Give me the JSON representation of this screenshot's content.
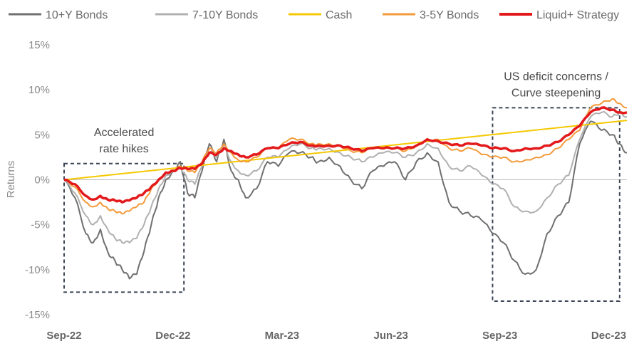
{
  "chart_data": {
    "type": "line",
    "ylabel": "Returns",
    "ylim": [
      -15,
      15
    ],
    "yticks": [
      15,
      10,
      5,
      0,
      -5,
      -10,
      -15
    ],
    "ytick_labels": [
      "15%",
      "10%",
      "5%",
      "0%",
      "-5%",
      "-10%",
      "-15%"
    ],
    "xlim": [
      0,
      15.5
    ],
    "xticks": [
      0,
      3,
      6,
      9,
      12,
      15
    ],
    "xtick_labels": [
      "Sep-22",
      "Dec-22",
      "Mar-23",
      "Jun-23",
      "Sep-23",
      "Dec-23"
    ],
    "legend_position": "top",
    "series": [
      {
        "name": "10+Y Bonds",
        "color": "#6f6f6f",
        "x": [
          0,
          0.3,
          0.6,
          0.8,
          1.0,
          1.2,
          1.4,
          1.6,
          1.8,
          2.0,
          2.2,
          2.4,
          2.6,
          2.8,
          3.0,
          3.2,
          3.4,
          3.6,
          3.8,
          4.0,
          4.2,
          4.4,
          4.6,
          4.8,
          5.0,
          5.3,
          5.6,
          5.9,
          6.2,
          6.5,
          6.8,
          7.0,
          7.3,
          7.6,
          7.9,
          8.2,
          8.5,
          8.8,
          9.1,
          9.4,
          9.7,
          10.0,
          10.3,
          10.6,
          10.9,
          11.2,
          11.5,
          11.8,
          12.1,
          12.4,
          12.7,
          13.0,
          13.3,
          13.6,
          13.9,
          14.2,
          14.5,
          14.8,
          15.1,
          15.3,
          15.5
        ],
        "values": [
          0,
          -2,
          -6,
          -7,
          -5.5,
          -8,
          -9,
          -10,
          -11,
          -10.5,
          -8,
          -5,
          -2,
          0,
          1,
          2,
          -1.5,
          -2,
          1,
          4,
          2,
          4.5,
          1,
          0,
          -2,
          -1,
          2,
          1.5,
          3,
          3,
          2.5,
          2,
          2.5,
          1.5,
          0,
          -1,
          1,
          1.5,
          2,
          0,
          2,
          3,
          2,
          -2.5,
          -3.5,
          -4,
          -4.5,
          -6,
          -7,
          -9,
          -10.5,
          -10,
          -6,
          -4,
          -2.5,
          4,
          6.5,
          5.5,
          5,
          4,
          3
        ]
      },
      {
        "name": "7-10Y Bonds",
        "color": "#b0b0b0",
        "x": [
          0,
          0.3,
          0.6,
          0.8,
          1.0,
          1.2,
          1.4,
          1.6,
          1.8,
          2.0,
          2.2,
          2.4,
          2.6,
          2.8,
          3.0,
          3.2,
          3.4,
          3.6,
          3.8,
          4.0,
          4.2,
          4.4,
          4.6,
          4.8,
          5.0,
          5.3,
          5.6,
          5.9,
          6.2,
          6.5,
          6.8,
          7.0,
          7.3,
          7.6,
          7.9,
          8.2,
          8.5,
          8.8,
          9.1,
          9.4,
          9.7,
          10.0,
          10.3,
          10.6,
          10.9,
          11.2,
          11.5,
          11.8,
          12.1,
          12.4,
          12.7,
          13.0,
          13.3,
          13.6,
          13.9,
          14.2,
          14.5,
          14.8,
          15.1,
          15.3,
          15.5
        ],
        "values": [
          0,
          -1.5,
          -4,
          -5,
          -4,
          -5.5,
          -6.5,
          -7,
          -7,
          -6.5,
          -5,
          -3,
          -1,
          0.5,
          1,
          1.5,
          0,
          -0.5,
          1.5,
          3.5,
          2.5,
          4,
          2,
          1,
          0.5,
          1,
          2.5,
          2.5,
          3.5,
          4,
          3.5,
          3.5,
          3.5,
          3,
          2.5,
          2,
          2.5,
          3,
          3,
          2.5,
          3,
          4,
          3.5,
          1.5,
          1,
          1.5,
          0.5,
          -0.5,
          -1,
          -3,
          -3.5,
          -3.5,
          -2,
          -0.5,
          0.5,
          4.5,
          7,
          7.5,
          7,
          7.5,
          7
        ]
      },
      {
        "name": "Cash",
        "color": "#f5c800",
        "x": [
          0,
          15.5
        ],
        "values": [
          0,
          6.6
        ]
      },
      {
        "name": "3-5Y Bonds",
        "color": "#f39a3a",
        "x": [
          0,
          0.3,
          0.6,
          0.8,
          1.0,
          1.2,
          1.4,
          1.6,
          1.8,
          2.0,
          2.2,
          2.4,
          2.6,
          2.8,
          3.0,
          3.2,
          3.4,
          3.6,
          3.8,
          4.0,
          4.2,
          4.4,
          4.6,
          4.8,
          5.0,
          5.3,
          5.6,
          5.9,
          6.2,
          6.5,
          6.8,
          7.0,
          7.3,
          7.6,
          7.9,
          8.2,
          8.5,
          8.8,
          9.1,
          9.4,
          9.7,
          10.0,
          10.3,
          10.6,
          10.9,
          11.2,
          11.5,
          11.8,
          12.1,
          12.4,
          12.7,
          13.0,
          13.3,
          13.6,
          13.9,
          14.2,
          14.5,
          14.8,
          15.1,
          15.3,
          15.5
        ],
        "values": [
          0,
          -0.8,
          -2.5,
          -3,
          -2.5,
          -3.2,
          -3.5,
          -3.8,
          -3.5,
          -3,
          -2.5,
          -1,
          0,
          0.8,
          1,
          1.5,
          1,
          0.8,
          2,
          3.5,
          3,
          4,
          3,
          2.2,
          2,
          2.5,
          3.5,
          3.5,
          4.5,
          4.5,
          4,
          4,
          4,
          3.8,
          3.2,
          3,
          3.5,
          3.5,
          3.5,
          3.2,
          3.8,
          4.5,
          4.5,
          3.5,
          3.2,
          3.5,
          2.8,
          2.5,
          2.5,
          2,
          2.2,
          2.5,
          2.8,
          3.5,
          4.5,
          5.5,
          8,
          8.5,
          9,
          8.5,
          8
        ]
      },
      {
        "name": "Liquid+ Strategy",
        "color": "#e3191b",
        "x": [
          0,
          0.3,
          0.6,
          0.8,
          1.0,
          1.2,
          1.4,
          1.6,
          1.8,
          2.0,
          2.2,
          2.4,
          2.6,
          2.8,
          3.0,
          3.2,
          3.4,
          3.6,
          3.8,
          4.0,
          4.2,
          4.4,
          4.6,
          4.8,
          5.0,
          5.3,
          5.6,
          5.9,
          6.2,
          6.5,
          6.8,
          7.0,
          7.3,
          7.6,
          7.9,
          8.2,
          8.5,
          8.8,
          9.1,
          9.4,
          9.7,
          10.0,
          10.3,
          10.6,
          10.9,
          11.2,
          11.5,
          11.8,
          12.1,
          12.4,
          12.7,
          13.0,
          13.3,
          13.6,
          13.9,
          14.2,
          14.5,
          14.8,
          15.1,
          15.3,
          15.5
        ],
        "values": [
          0,
          -0.5,
          -1.8,
          -2.2,
          -1.8,
          -2.2,
          -2.3,
          -2.5,
          -2.3,
          -2,
          -1.5,
          -0.8,
          0,
          0.8,
          1,
          1.3,
          1.2,
          1.2,
          1.8,
          3,
          2.8,
          3.5,
          3.2,
          2.8,
          2.5,
          2.8,
          3.5,
          3.5,
          4,
          4.2,
          3.8,
          3.8,
          3.8,
          3.8,
          3.5,
          3.2,
          3.5,
          3.5,
          3.5,
          3.5,
          3.8,
          4.5,
          4.3,
          4,
          3.8,
          4,
          3.8,
          3.5,
          3.5,
          3.2,
          3.5,
          3.5,
          3.8,
          4.2,
          5,
          6,
          7.5,
          8,
          7.8,
          7.5,
          7.5
        ]
      }
    ],
    "annotations": [
      {
        "lines": [
          "Accelerated",
          "rate hikes"
        ],
        "x_range": [
          0,
          3.3
        ],
        "y_range": [
          -12.5,
          1.8
        ]
      },
      {
        "lines": [
          "US deficit concerns /",
          "Curve steepening"
        ],
        "x_range": [
          11.8,
          15.3
        ],
        "y_range": [
          -13.5,
          8
        ]
      }
    ]
  }
}
